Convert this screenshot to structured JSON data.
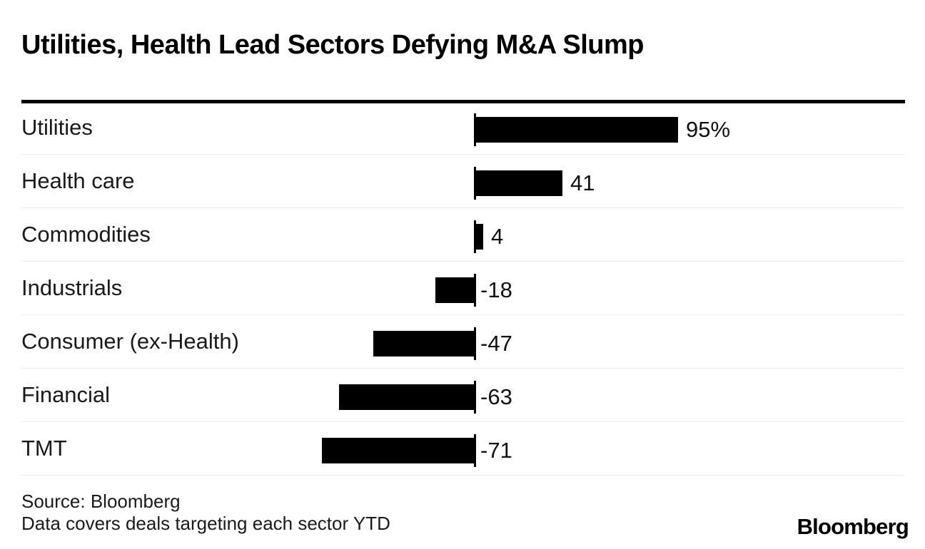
{
  "header": {
    "title": "Utilities, Health Lead Sectors Defying M&A Slump"
  },
  "chart_data": {
    "type": "bar",
    "orientation": "horizontal",
    "title": "Utilities, Health Lead Sectors Defying M&A Slump",
    "categories": [
      "Utilities",
      "Health care",
      "Commodities",
      "Industrials",
      "Consumer (ex-Health)",
      "Financial",
      "TMT"
    ],
    "values": [
      95,
      41,
      4,
      -18,
      -47,
      -63,
      -71
    ],
    "value_labels": [
      "95%",
      "41",
      "4",
      "-18",
      "-47",
      "-63",
      "-71"
    ],
    "unit": "percent",
    "xlim": [
      -212,
      200
    ],
    "grid": false,
    "zero_line": true,
    "legend": "none",
    "colors": {
      "bar": "#000000",
      "separator": "#ececec",
      "category_label": "#1a1a1a",
      "value_label": "#111111",
      "rule": "#000000"
    }
  },
  "footer": {
    "source_line1": "Source: Bloomberg",
    "source_line2": "Data covers deals targeting each sector YTD",
    "logo_text": "Bloomberg"
  }
}
